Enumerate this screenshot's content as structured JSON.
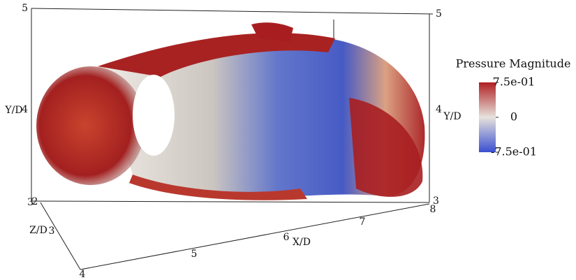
{
  "axes": {
    "y_left": {
      "label": "Y/D",
      "ticks": [
        5,
        4,
        3
      ]
    },
    "y_right": {
      "label": "Y/D",
      "ticks": [
        5,
        4,
        3
      ]
    },
    "z": {
      "label": "Z/D",
      "ticks": [
        2,
        3,
        4
      ]
    },
    "x": {
      "label": "X/D",
      "ticks": [
        5,
        6,
        7,
        8
      ]
    }
  },
  "colorbar": {
    "title": "Pressure Magnitude",
    "range": [
      -0.75,
      0.75
    ],
    "colors": [
      "#3a4fd0",
      "#e6e2dc",
      "#b01f22"
    ],
    "ticks": [
      {
        "value": 0.75,
        "label": "7.5e-01"
      },
      {
        "value": 0,
        "label": "0"
      },
      {
        "value": -0.75,
        "label": "-7.5e-01"
      }
    ]
  }
}
